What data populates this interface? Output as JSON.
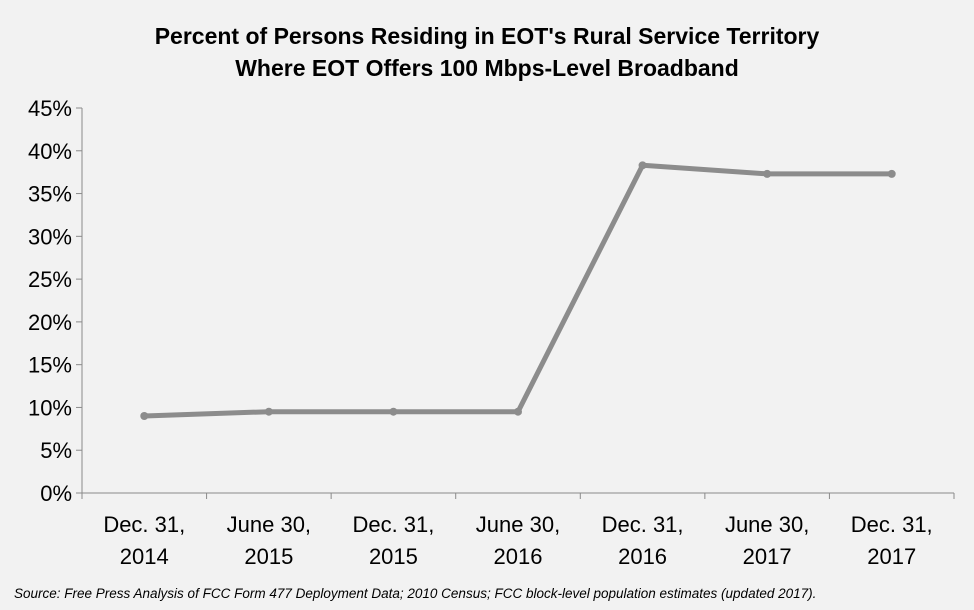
{
  "chart_data": {
    "type": "line",
    "title_lines": [
      "Percent of Persons Residing in EOT's Rural Service Territory",
      "Where EOT Offers 100 Mbps-Level  Broadband"
    ],
    "categories": [
      [
        "Dec. 31,",
        "2014"
      ],
      [
        "June 30,",
        "2015"
      ],
      [
        "Dec. 31,",
        "2015"
      ],
      [
        "June 30,",
        "2016"
      ],
      [
        "Dec. 31,",
        "2016"
      ],
      [
        "June 30,",
        "2017"
      ],
      [
        "Dec. 31,",
        "2017"
      ]
    ],
    "series": [
      {
        "name": "Percent of persons",
        "values": [
          9.0,
          9.5,
          9.5,
          9.5,
          38.3,
          37.3,
          37.3
        ]
      }
    ],
    "yticks": [
      "0%",
      "5%",
      "10%",
      "15%",
      "20%",
      "25%",
      "30%",
      "35%",
      "40%",
      "45%"
    ],
    "ylim": [
      0,
      45
    ],
    "xlabel": "",
    "ylabel": "",
    "line_color": "#8c8c8c",
    "axis_color": "#8a8a8a"
  },
  "source_text": "Source: Free Press Analysis of FCC Form 477 Deployment Data; 2010 Census; FCC block-level population estimates (updated 2017)."
}
